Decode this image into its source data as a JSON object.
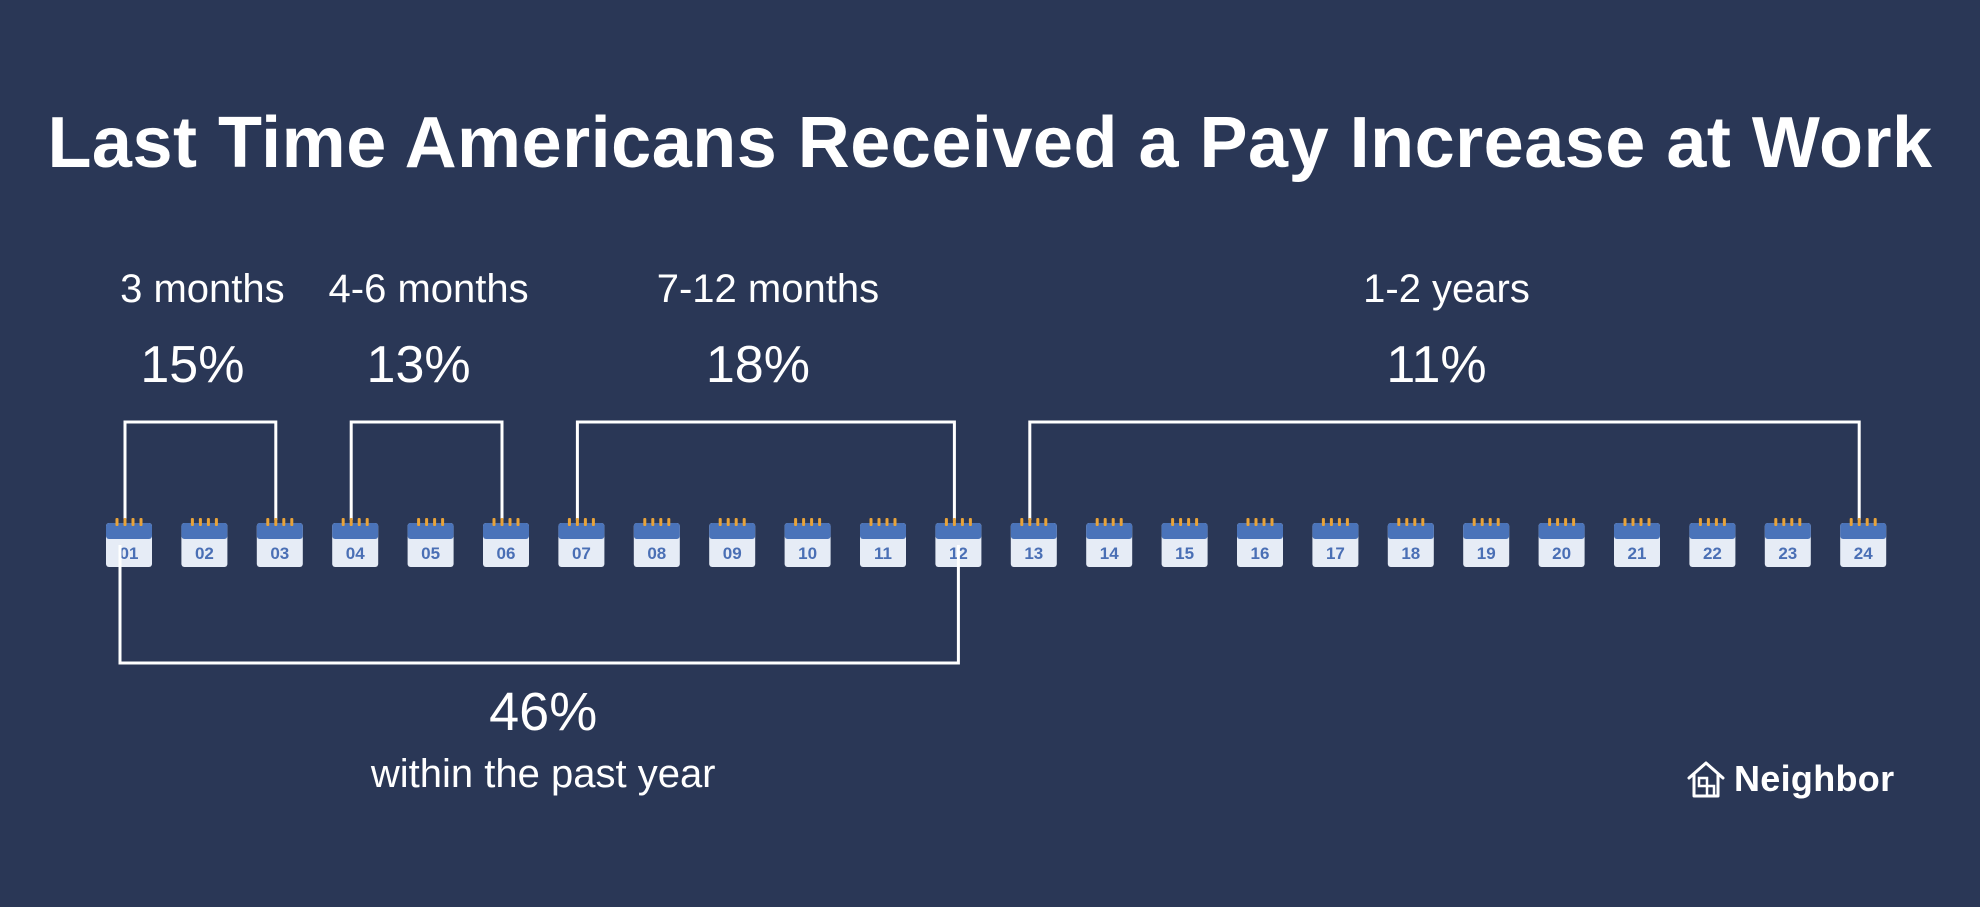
{
  "title": "Last Time Americans Received a Pay Increase at Work",
  "chart_data": {
    "type": "bar",
    "months": [
      "01",
      "02",
      "03",
      "04",
      "05",
      "06",
      "07",
      "08",
      "09",
      "10",
      "11",
      "12",
      "13",
      "14",
      "15",
      "16",
      "17",
      "18",
      "19",
      "20",
      "21",
      "22",
      "23",
      "24"
    ],
    "groups": [
      {
        "label": "3 months",
        "value": "15%",
        "percent": 15,
        "start_month": 1,
        "end_month": 3
      },
      {
        "label": "4-6 months",
        "value": "13%",
        "percent": 13,
        "start_month": 4,
        "end_month": 6
      },
      {
        "label": "7-12 months",
        "value": "18%",
        "percent": 18,
        "start_month": 7,
        "end_month": 12
      },
      {
        "label": "1-2 years",
        "value": "11%",
        "percent": 11,
        "start_month": 13,
        "end_month": 24
      }
    ],
    "summary": {
      "value": "46%",
      "percent": 46,
      "label": "within the past year",
      "start_month": 1,
      "end_month": 12
    }
  },
  "brand": {
    "name": "Neighbor",
    "icon": "house-icon"
  },
  "colors": {
    "background": "#2a3756",
    "calendar_header": "#4a73b9",
    "calendar_number": "#4a6fb5",
    "calendar_rings": "#e8a33a",
    "text": "#ffffff"
  }
}
